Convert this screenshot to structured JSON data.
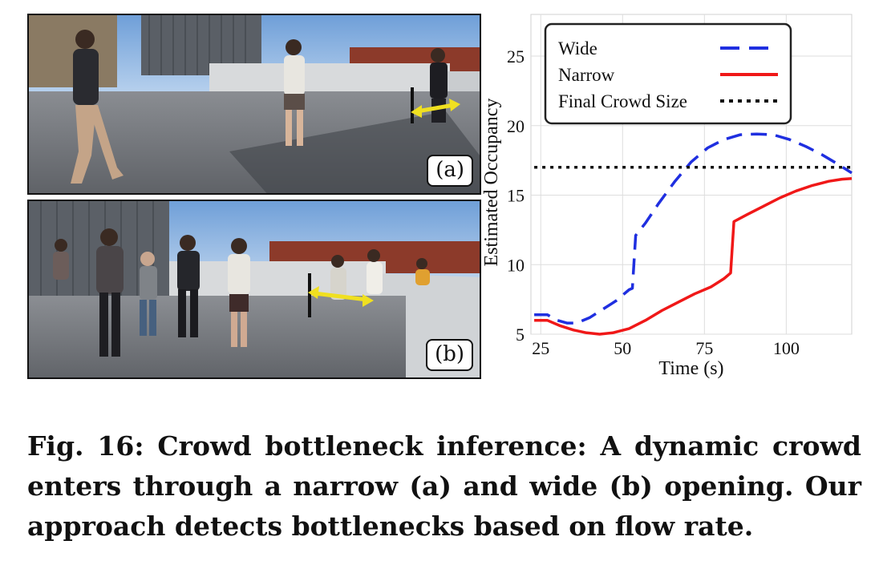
{
  "figure": {
    "panel_a_label": "(a)",
    "panel_b_label": "(b)",
    "caption_prefix": "Fig. 16:",
    "caption_text": "Crowd bottleneck inference: A dynamic crowd enters through a narrow (a) and wide (b) opening. Our approach detects bottlenecks based on flow rate."
  },
  "colors": {
    "wide": "#1f2fe0",
    "narrow": "#f01818",
    "final": "#111111",
    "arrow": "#f0e020"
  },
  "chart_data": {
    "type": "line",
    "xlabel": "Time (s)",
    "ylabel": "Estimated Occupancy",
    "xlim": [
      22,
      120
    ],
    "ylim": [
      5,
      28
    ],
    "xticks": [
      25,
      50,
      75,
      100
    ],
    "yticks": [
      5,
      10,
      15,
      20,
      25
    ],
    "grid": true,
    "legend_position": "top-left",
    "series": [
      {
        "name": "Wide",
        "style": "dashed",
        "color": "#1f2fe0",
        "points": [
          [
            23,
            6.4
          ],
          [
            27,
            6.4
          ],
          [
            30,
            6.0
          ],
          [
            33,
            5.8
          ],
          [
            36,
            5.8
          ],
          [
            40,
            6.2
          ],
          [
            44,
            6.8
          ],
          [
            48,
            7.4
          ],
          [
            52,
            8.2
          ],
          [
            53,
            8.3
          ],
          [
            54,
            12.1
          ],
          [
            57,
            13.0
          ],
          [
            61,
            14.4
          ],
          [
            66,
            16.0
          ],
          [
            71,
            17.4
          ],
          [
            76,
            18.4
          ],
          [
            81,
            19.0
          ],
          [
            86,
            19.35
          ],
          [
            91,
            19.4
          ],
          [
            96,
            19.35
          ],
          [
            101,
            19.0
          ],
          [
            106,
            18.5
          ],
          [
            111,
            17.9
          ],
          [
            116,
            17.2
          ],
          [
            120,
            16.6
          ]
        ]
      },
      {
        "name": "Narrow",
        "style": "solid",
        "color": "#f01818",
        "points": [
          [
            23,
            6.0
          ],
          [
            27,
            6.0
          ],
          [
            31,
            5.6
          ],
          [
            35,
            5.3
          ],
          [
            39,
            5.1
          ],
          [
            43,
            5.0
          ],
          [
            47,
            5.1
          ],
          [
            52,
            5.4
          ],
          [
            57,
            6.0
          ],
          [
            62,
            6.7
          ],
          [
            67,
            7.3
          ],
          [
            72,
            7.9
          ],
          [
            77,
            8.4
          ],
          [
            81,
            9.0
          ],
          [
            83,
            9.4
          ],
          [
            84,
            13.1
          ],
          [
            88,
            13.6
          ],
          [
            93,
            14.2
          ],
          [
            98,
            14.8
          ],
          [
            103,
            15.3
          ],
          [
            108,
            15.7
          ],
          [
            113,
            16.0
          ],
          [
            117,
            16.15
          ],
          [
            120,
            16.2
          ]
        ]
      },
      {
        "name": "Final Crowd Size",
        "style": "dotted",
        "color": "#111111",
        "points": [
          [
            23,
            17.0
          ],
          [
            120,
            17.0
          ]
        ]
      }
    ]
  }
}
